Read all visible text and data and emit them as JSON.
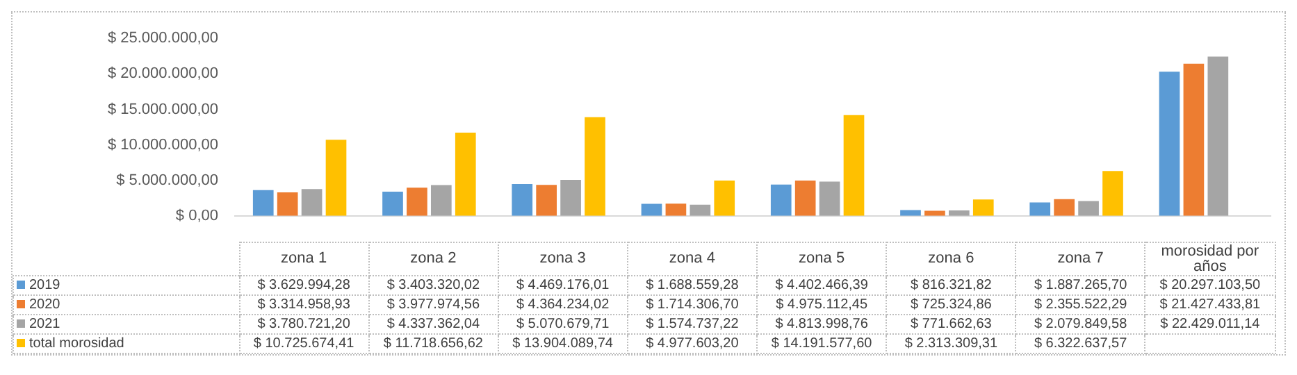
{
  "chart_data": {
    "type": "bar",
    "categories": [
      "zona 1",
      "zona 2",
      "zona 3",
      "zona 4",
      "zona 5",
      "zona 6",
      "zona 7",
      "morosidad por años"
    ],
    "series": [
      {
        "name": "2019",
        "color": "#5b9bd5",
        "values": [
          3629994.28,
          3403320.02,
          4469176.01,
          1688559.28,
          4402466.39,
          816321.82,
          1887265.7,
          20297103.5
        ],
        "value_labels": [
          "$ 3.629.994,28",
          "$ 3.403.320,02",
          "$ 4.469.176,01",
          "$ 1.688.559,28",
          "$ 4.402.466,39",
          "$ 816.321,82",
          "$ 1.887.265,70",
          "$ 20.297.103,50"
        ]
      },
      {
        "name": "2020",
        "color": "#ed7d31",
        "values": [
          3314958.93,
          3977974.56,
          4364234.02,
          1714306.7,
          4975112.45,
          725324.86,
          2355522.29,
          21427433.81
        ],
        "value_labels": [
          "$ 3.314.958,93",
          "$ 3.977.974,56",
          "$ 4.364.234,02",
          "$ 1.714.306,70",
          "$ 4.975.112,45",
          "$ 725.324,86",
          "$ 2.355.522,29",
          "$ 21.427.433,81"
        ]
      },
      {
        "name": "2021",
        "color": "#a5a5a5",
        "values": [
          3780721.2,
          4337362.04,
          5070679.71,
          1574737.22,
          4813998.76,
          771662.63,
          2079849.58,
          22429011.14
        ],
        "value_labels": [
          "$ 3.780.721,20",
          "$ 4.337.362,04",
          "$ 5.070.679,71",
          "$ 1.574.737,22",
          "$ 4.813.998,76",
          "$ 771.662,63",
          "$ 2.079.849,58",
          "$ 22.429.011,14"
        ]
      },
      {
        "name": "total morosidad",
        "color": "#ffc000",
        "values": [
          10725674.41,
          11718656.62,
          13904089.74,
          4977603.2,
          14191577.6,
          2313309.31,
          6322637.57,
          null
        ],
        "value_labels": [
          "$ 10.725.674,41",
          "$ 11.718.656,62",
          "$ 13.904.089,74",
          "$ 4.977.603,20",
          "$ 14.191.577,60",
          "$ 2.313.309,31",
          "$ 6.322.637,57",
          null
        ]
      }
    ],
    "ylim": [
      0,
      25000000
    ],
    "yticks": [
      {
        "value": 0,
        "label": "$ 0,00"
      },
      {
        "value": 5000000,
        "label": "$ 5.000.000,00"
      },
      {
        "value": 10000000,
        "label": "$ 10.000.000,00"
      },
      {
        "value": 15000000,
        "label": "$ 15.000.000,00"
      },
      {
        "value": 20000000,
        "label": "$ 20.000.000,00"
      },
      {
        "value": 25000000,
        "label": "$ 25.000.000,00"
      }
    ],
    "grid": false,
    "legend": "bottom"
  }
}
